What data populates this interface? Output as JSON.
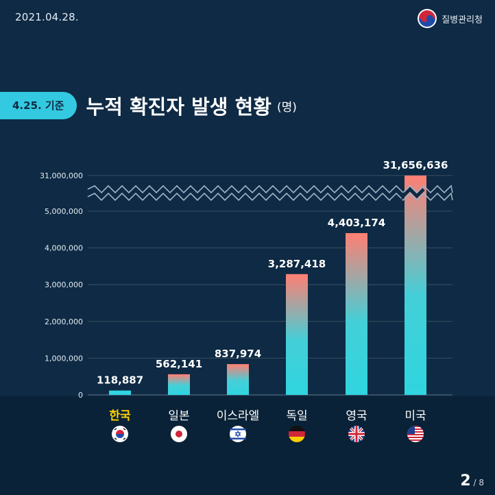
{
  "header": {
    "date": "2021.04.28.",
    "agency": "질병관리청"
  },
  "title": {
    "date_label": "4.25. 기준",
    "text": "누적 확진자 발생 현황",
    "unit": "(명)"
  },
  "pagination": {
    "current": "2",
    "total": "/ 8"
  },
  "colors": {
    "bar_bottom": "#2fd5df",
    "bar_top": "#ff7f73",
    "background": "#0e2a44",
    "highlight": "#ffd200"
  },
  "chart_data": {
    "type": "bar",
    "categories": [
      "한국",
      "일본",
      "이스라엘",
      "독일",
      "영국",
      "미국"
    ],
    "values": [
      118887,
      562141,
      837974,
      3287418,
      4403174,
      31656636
    ],
    "value_labels": [
      "118,887",
      "562,141",
      "837,974",
      "3,287,418",
      "4,403,174",
      "31,656,636"
    ],
    "flags": [
      "korea-flag",
      "japan-flag",
      "israel-flag",
      "germany-flag",
      "uk-flag",
      "usa-flag"
    ],
    "y_ticks": [
      "0",
      "1,000,000",
      "2,000,000",
      "3,000,000",
      "4,000,000",
      "5,000,000",
      "31,000,000"
    ],
    "ylim": [
      0,
      31000000
    ],
    "axis_break": [
      5000000,
      31000000
    ],
    "grid": true,
    "highlight_category": "한국"
  }
}
